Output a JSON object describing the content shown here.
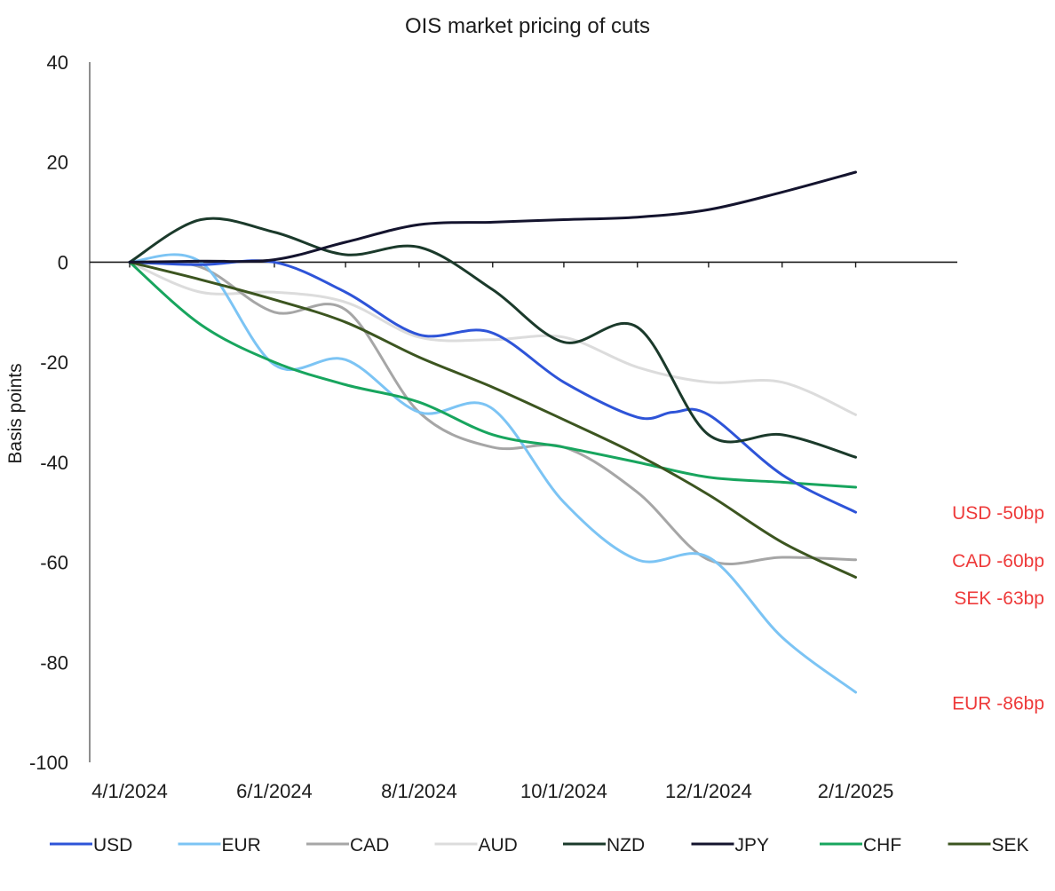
{
  "chart_data": {
    "type": "line",
    "title": "OIS market pricing of cuts",
    "ylabel": "Basis points",
    "xlabel": "",
    "ylim": [
      -100,
      40
    ],
    "yticks": [
      40,
      20,
      0,
      -20,
      -40,
      -60,
      -80,
      -100
    ],
    "xlim": [
      "2024-04-01",
      "2025-02-27"
    ],
    "xticks": [
      {
        "date": "2024-04-01",
        "label": "4/1/2024"
      },
      {
        "date": "2024-06-01",
        "label": "6/1/2024"
      },
      {
        "date": "2024-08-01",
        "label": "8/1/2024"
      },
      {
        "date": "2024-10-01",
        "label": "10/1/2024"
      },
      {
        "date": "2024-12-01",
        "label": "12/1/2024"
      },
      {
        "date": "2025-02-01",
        "label": "2/1/2025"
      }
    ],
    "minor_ticks": [
      "2024-05-01",
      "2024-07-01",
      "2024-09-01",
      "2024-11-01",
      "2025-01-01"
    ],
    "grid": false,
    "legend_position": "bottom",
    "series": [
      {
        "name": "USD",
        "color": "#2e54d8",
        "points": [
          [
            "2024-04-01",
            0
          ],
          [
            "2024-05-01",
            -0.5
          ],
          [
            "2024-06-01",
            0
          ],
          [
            "2024-07-01",
            -6
          ],
          [
            "2024-08-01",
            -14.5
          ],
          [
            "2024-08-31",
            -14
          ],
          [
            "2024-10-01",
            -24
          ],
          [
            "2024-11-01",
            -31
          ],
          [
            "2024-11-16",
            -30
          ],
          [
            "2024-12-01",
            -30.5
          ],
          [
            "2025-01-01",
            -42.5
          ],
          [
            "2025-02-01",
            -50
          ]
        ]
      },
      {
        "name": "EUR",
        "color": "#7cc4f4",
        "points": [
          [
            "2024-04-01",
            0
          ],
          [
            "2024-05-01",
            0
          ],
          [
            "2024-06-01",
            -20.5
          ],
          [
            "2024-07-01",
            -19.5
          ],
          [
            "2024-08-01",
            -30
          ],
          [
            "2024-08-31",
            -29
          ],
          [
            "2024-10-01",
            -48
          ],
          [
            "2024-11-01",
            -59.5
          ],
          [
            "2024-12-01",
            -59
          ],
          [
            "2025-01-01",
            -75
          ],
          [
            "2025-02-01",
            -86
          ]
        ]
      },
      {
        "name": "CAD",
        "color": "#a6a6a6",
        "points": [
          [
            "2024-04-01",
            0
          ],
          [
            "2024-05-01",
            -1
          ],
          [
            "2024-06-01",
            -10
          ],
          [
            "2024-07-01",
            -9.5
          ],
          [
            "2024-08-01",
            -30
          ],
          [
            "2024-09-01",
            -37
          ],
          [
            "2024-10-01",
            -37
          ],
          [
            "2024-11-01",
            -46
          ],
          [
            "2024-12-01",
            -59.5
          ],
          [
            "2025-01-01",
            -59
          ],
          [
            "2025-02-01",
            -59.5
          ]
        ]
      },
      {
        "name": "AUD",
        "color": "#dcdcdc",
        "points": [
          [
            "2024-04-01",
            0
          ],
          [
            "2024-05-01",
            -6
          ],
          [
            "2024-06-01",
            -6
          ],
          [
            "2024-07-01",
            -8
          ],
          [
            "2024-08-01",
            -15
          ],
          [
            "2024-09-01",
            -15.5
          ],
          [
            "2024-10-01",
            -15
          ],
          [
            "2024-11-01",
            -21
          ],
          [
            "2024-12-01",
            -24
          ],
          [
            "2025-01-01",
            -24
          ],
          [
            "2025-02-01",
            -30.5
          ]
        ]
      },
      {
        "name": "NZD",
        "color": "#1b3a2b",
        "points": [
          [
            "2024-04-01",
            0
          ],
          [
            "2024-05-01",
            8.5
          ],
          [
            "2024-06-01",
            6
          ],
          [
            "2024-07-01",
            1.5
          ],
          [
            "2024-08-01",
            3
          ],
          [
            "2024-09-01",
            -5.5
          ],
          [
            "2024-10-01",
            -16
          ],
          [
            "2024-11-01",
            -13
          ],
          [
            "2024-12-01",
            -34.5
          ],
          [
            "2025-01-01",
            -34.5
          ],
          [
            "2025-02-01",
            -39
          ]
        ]
      },
      {
        "name": "JPY",
        "color": "#14142e",
        "points": [
          [
            "2024-04-01",
            0
          ],
          [
            "2024-05-01",
            0.2
          ],
          [
            "2024-06-01",
            0.5
          ],
          [
            "2024-07-01",
            4
          ],
          [
            "2024-08-01",
            7.5
          ],
          [
            "2024-09-01",
            8
          ],
          [
            "2024-10-01",
            8.5
          ],
          [
            "2024-11-01",
            9
          ],
          [
            "2024-12-01",
            10.5
          ],
          [
            "2025-01-01",
            14
          ],
          [
            "2025-02-01",
            18
          ]
        ]
      },
      {
        "name": "CHF",
        "color": "#18a55e",
        "points": [
          [
            "2024-04-01",
            0
          ],
          [
            "2024-05-01",
            -12.5
          ],
          [
            "2024-06-01",
            -20
          ],
          [
            "2024-07-01",
            -24.5
          ],
          [
            "2024-08-01",
            -28
          ],
          [
            "2024-09-01",
            -34.5
          ],
          [
            "2024-10-01",
            -37
          ],
          [
            "2024-11-01",
            -40
          ],
          [
            "2024-12-01",
            -43
          ],
          [
            "2025-01-01",
            -44
          ],
          [
            "2025-02-01",
            -45
          ]
        ]
      },
      {
        "name": "SEK",
        "color": "#3c5520",
        "points": [
          [
            "2024-04-01",
            0
          ],
          [
            "2024-05-01",
            -3.5
          ],
          [
            "2024-06-01",
            -7.5
          ],
          [
            "2024-07-01",
            -12
          ],
          [
            "2024-08-01",
            -19
          ],
          [
            "2024-09-01",
            -25
          ],
          [
            "2024-10-01",
            -31.5
          ],
          [
            "2024-11-01",
            -38.5
          ],
          [
            "2024-12-01",
            -46.5
          ],
          [
            "2025-01-01",
            -56
          ],
          [
            "2025-02-01",
            -63
          ]
        ]
      }
    ],
    "annotations": [
      {
        "text": "USD -50bp",
        "date": "2025-02-01",
        "value": -50,
        "color": "#ee3a3a"
      },
      {
        "text": "CAD -60bp",
        "date": "2025-02-01",
        "value": -59.5,
        "color": "#ee3a3a"
      },
      {
        "text": "SEK -63bp",
        "date": "2025-02-01",
        "value": -67,
        "color": "#ee3a3a"
      },
      {
        "text": "EUR -86bp",
        "date": "2025-02-01",
        "value": -88,
        "color": "#ee3a3a"
      }
    ]
  }
}
